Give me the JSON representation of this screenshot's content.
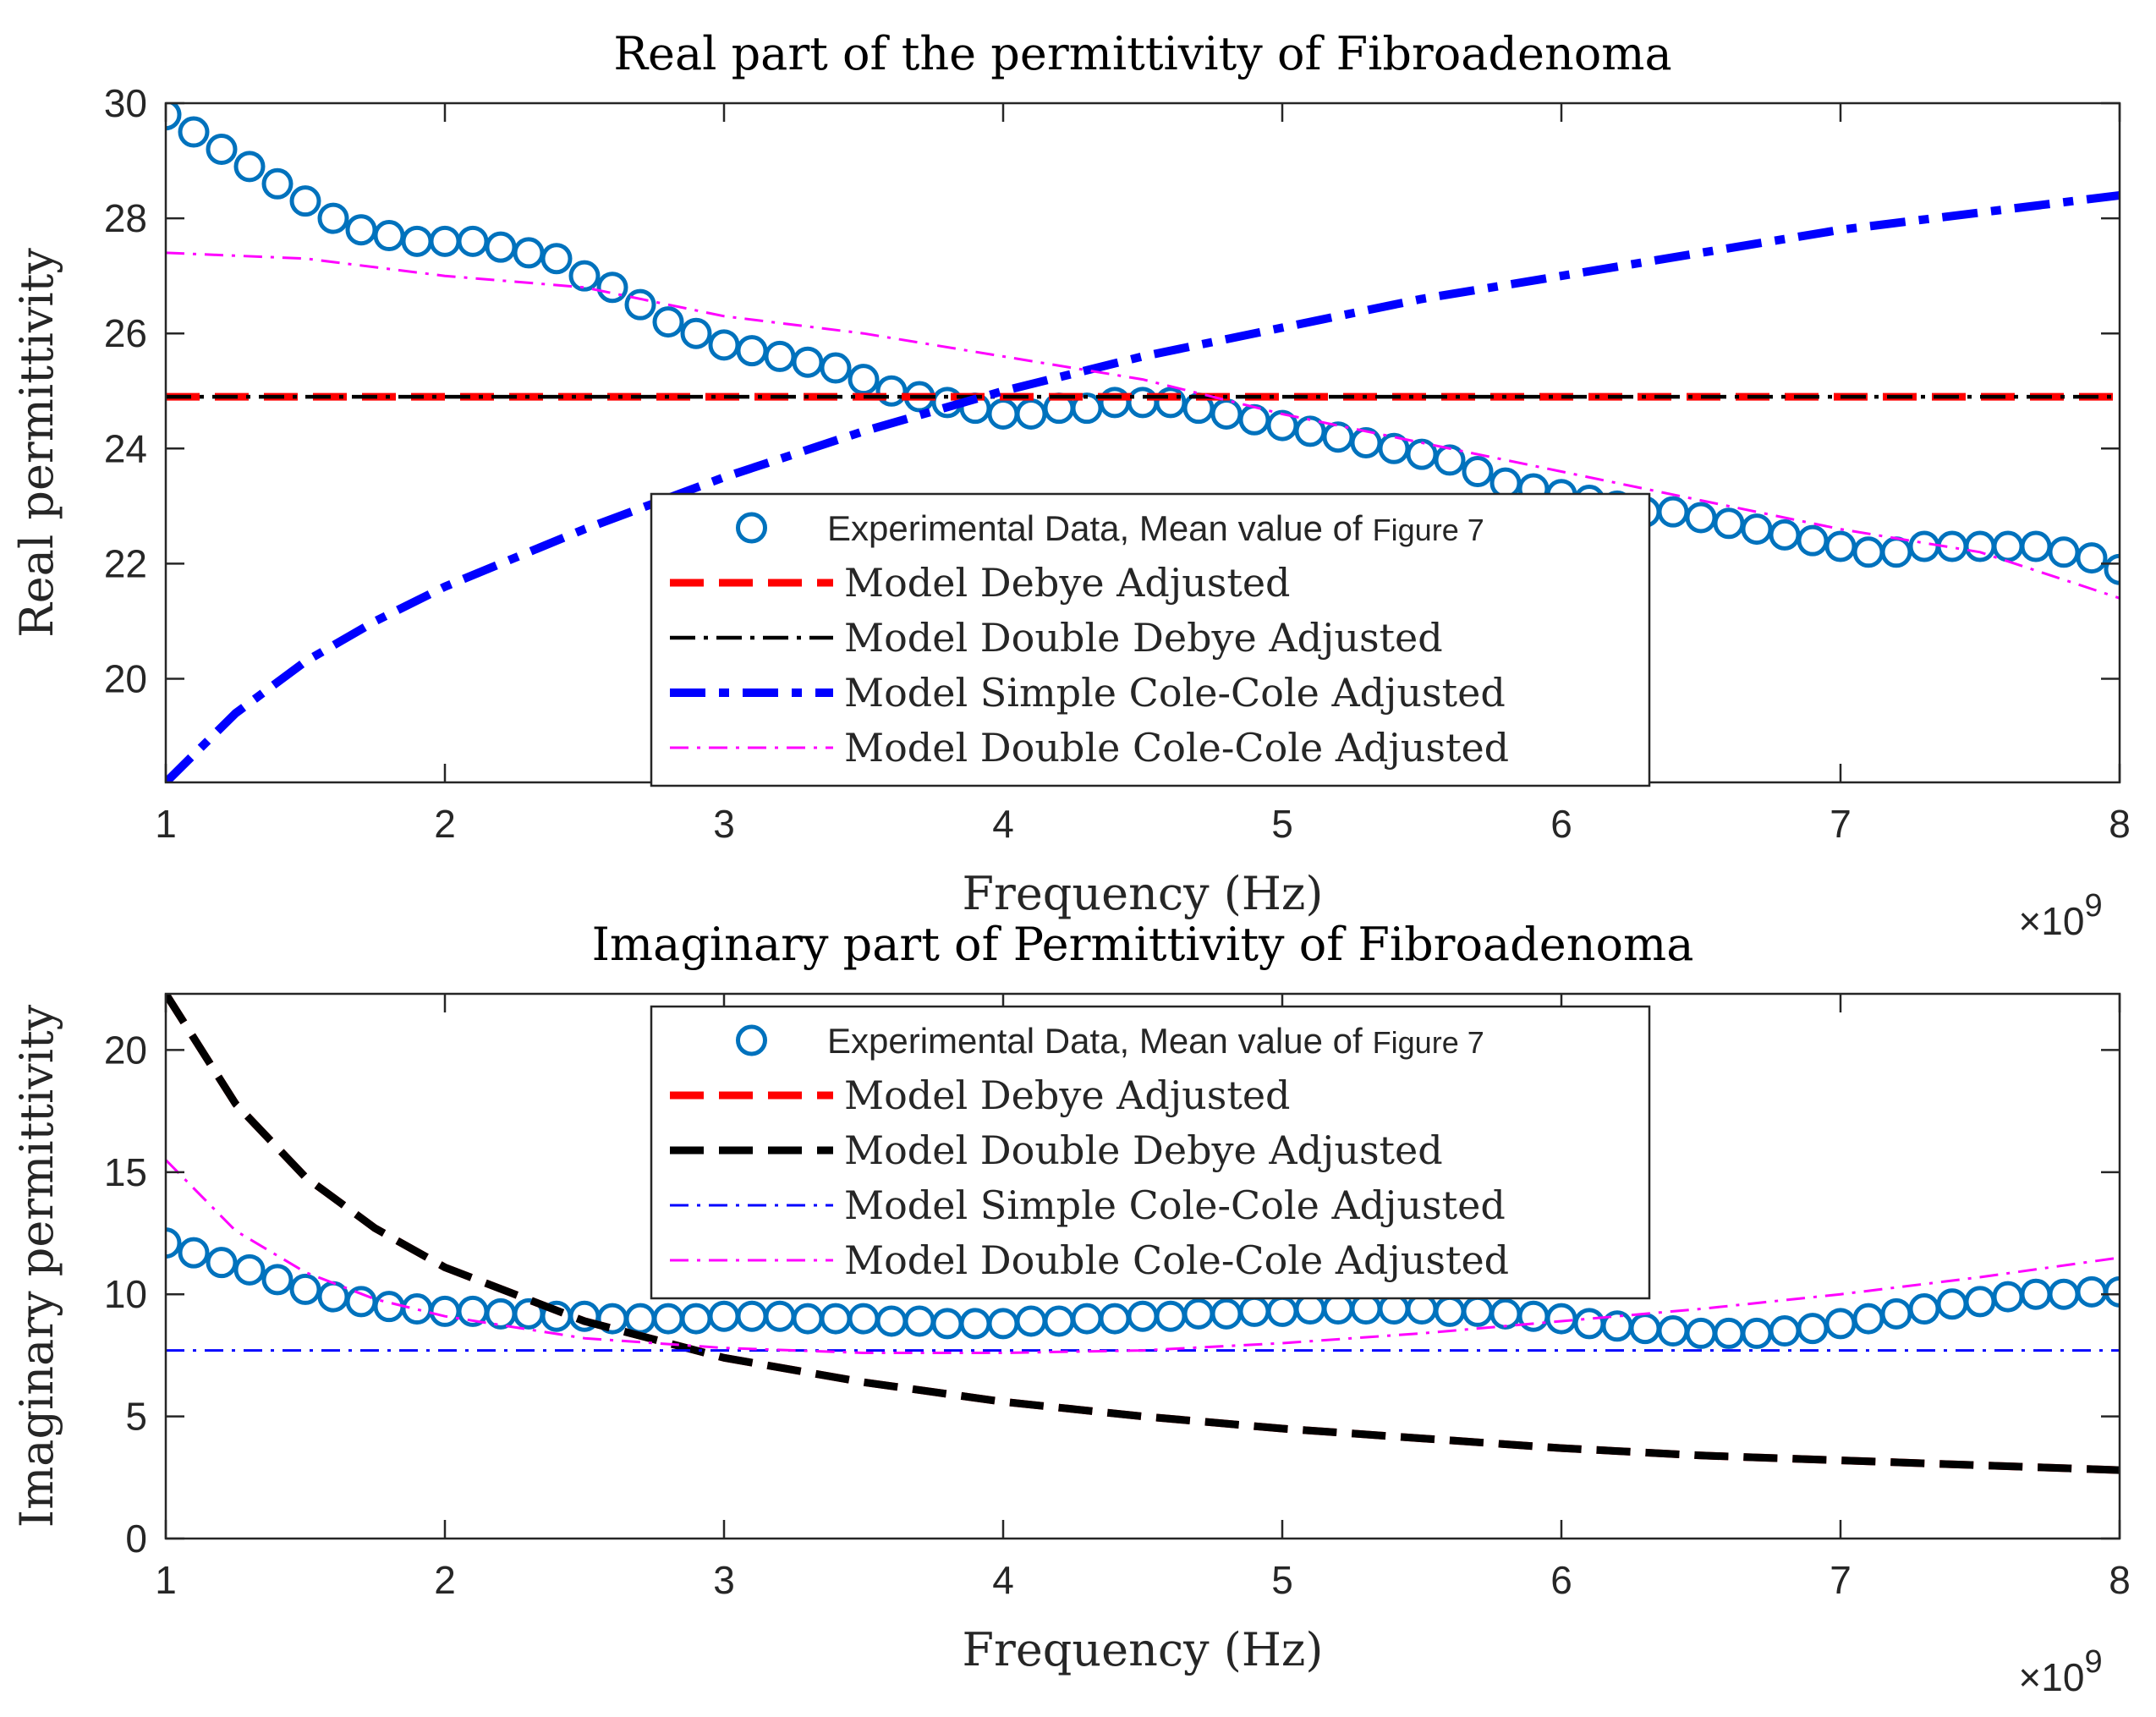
{
  "chart_data": [
    {
      "type": "line",
      "title": "Real part of the permittivity of Fibroadenoma",
      "xlabel": "Frequency (Hz)",
      "ylabel": "Real permittivity",
      "x_exponent": "×10",
      "x_exponent_power": "9",
      "xlim": [
        1,
        8
      ],
      "ylim": [
        18.2,
        30
      ],
      "xticks": [
        1,
        2,
        3,
        4,
        5,
        6,
        7,
        8
      ],
      "xtick_labels": [
        "1",
        "2",
        "3",
        "4",
        "5",
        "6",
        "7",
        "8"
      ],
      "yticks": [
        20,
        22,
        24,
        26,
        28,
        30
      ],
      "ytick_labels": [
        "20",
        "22",
        "24",
        "26",
        "28",
        "30"
      ],
      "legend_position": "bottom-center",
      "grid": false,
      "series": [
        {
          "name": "Experimental Data, Mean value of",
          "name_suffix": "Figure 7",
          "style": "markers",
          "color": "#0072BD",
          "x": [
            1.0,
            1.1,
            1.2,
            1.3,
            1.4,
            1.5,
            1.6,
            1.7,
            1.8,
            1.9,
            2.0,
            2.1,
            2.2,
            2.3,
            2.4,
            2.5,
            2.6,
            2.7,
            2.8,
            2.9,
            3.0,
            3.1,
            3.2,
            3.3,
            3.4,
            3.5,
            3.6,
            3.7,
            3.8,
            3.9,
            4.0,
            4.1,
            4.2,
            4.3,
            4.4,
            4.5,
            4.6,
            4.7,
            4.8,
            4.9,
            5.0,
            5.1,
            5.2,
            5.3,
            5.4,
            5.5,
            5.6,
            5.7,
            5.8,
            5.9,
            6.0,
            6.1,
            6.2,
            6.3,
            6.4,
            6.5,
            6.6,
            6.7,
            6.8,
            6.9,
            7.0,
            7.1,
            7.2,
            7.3,
            7.4,
            7.5,
            7.6,
            7.7,
            7.8,
            7.9,
            8.0
          ],
          "y": [
            29.8,
            29.5,
            29.2,
            28.9,
            28.6,
            28.3,
            28.0,
            27.8,
            27.7,
            27.6,
            27.6,
            27.6,
            27.5,
            27.4,
            27.3,
            27.0,
            26.8,
            26.5,
            26.2,
            26.0,
            25.8,
            25.7,
            25.6,
            25.5,
            25.4,
            25.2,
            25.0,
            24.9,
            24.8,
            24.7,
            24.6,
            24.6,
            24.7,
            24.7,
            24.8,
            24.8,
            24.8,
            24.7,
            24.6,
            24.5,
            24.4,
            24.3,
            24.2,
            24.1,
            24.0,
            23.9,
            23.8,
            23.6,
            23.4,
            23.3,
            23.2,
            23.1,
            23.0,
            22.9,
            22.9,
            22.8,
            22.7,
            22.6,
            22.5,
            22.4,
            22.3,
            22.2,
            22.2,
            22.3,
            22.3,
            22.3,
            22.3,
            22.3,
            22.2,
            22.1,
            21.9
          ]
        },
        {
          "name": "Model Debye Adjusted",
          "style": "dashed-thick",
          "color": "#FF0000",
          "x": [
            1,
            8
          ],
          "y": [
            24.9,
            24.9
          ]
        },
        {
          "name": "Model Double Debye Adjusted",
          "style": "dashdot",
          "color": "#000000",
          "x": [
            1,
            8
          ],
          "y": [
            24.9,
            24.9
          ]
        },
        {
          "name": "Model Simple Cole-Cole Adjusted",
          "style": "dashdot-thick",
          "color": "#0000FF",
          "x": [
            1.0,
            1.25,
            1.5,
            1.75,
            2.0,
            2.5,
            3.0,
            3.5,
            4.0,
            4.5,
            5.0,
            5.5,
            6.0,
            6.5,
            7.0,
            7.5,
            8.0
          ],
          "y": [
            18.2,
            19.4,
            20.3,
            21.0,
            21.6,
            22.6,
            23.5,
            24.3,
            25.0,
            25.6,
            26.1,
            26.6,
            27.0,
            27.4,
            27.8,
            28.1,
            28.4
          ]
        },
        {
          "name": "Model Double Cole-Cole Adjusted",
          "style": "dashdot-thin",
          "color": "#FF00FF",
          "x": [
            1.0,
            1.5,
            2.0,
            2.5,
            3.0,
            3.5,
            4.0,
            4.5,
            5.0,
            5.5,
            6.0,
            6.5,
            7.0,
            7.5,
            8.0
          ],
          "y": [
            27.4,
            27.3,
            27.0,
            26.8,
            26.3,
            26.0,
            25.6,
            25.2,
            24.6,
            24.1,
            23.6,
            23.1,
            22.6,
            22.2,
            21.4
          ]
        }
      ]
    },
    {
      "type": "line",
      "title": "Imaginary part of Permittivity of Fibroadenoma",
      "xlabel": "Frequency (Hz)",
      "ylabel": "Imaginary permittivity",
      "x_exponent": "×10",
      "x_exponent_power": "9",
      "xlim": [
        1,
        8
      ],
      "ylim": [
        0,
        22.3
      ],
      "xticks": [
        1,
        2,
        3,
        4,
        5,
        6,
        7,
        8
      ],
      "xtick_labels": [
        "1",
        "2",
        "3",
        "4",
        "5",
        "6",
        "7",
        "8"
      ],
      "yticks": [
        0,
        5,
        10,
        15,
        20
      ],
      "ytick_labels": [
        "0",
        "5",
        "10",
        "15",
        "20"
      ],
      "legend_position": "top-center",
      "grid": false,
      "series": [
        {
          "name": "Experimental Data, Mean value of",
          "name_suffix": "Figure 7",
          "style": "markers",
          "color": "#0072BD",
          "x": [
            1.0,
            1.1,
            1.2,
            1.3,
            1.4,
            1.5,
            1.6,
            1.7,
            1.8,
            1.9,
            2.0,
            2.1,
            2.2,
            2.3,
            2.4,
            2.5,
            2.6,
            2.7,
            2.8,
            2.9,
            3.0,
            3.1,
            3.2,
            3.3,
            3.4,
            3.5,
            3.6,
            3.7,
            3.8,
            3.9,
            4.0,
            4.1,
            4.2,
            4.3,
            4.4,
            4.5,
            4.6,
            4.7,
            4.8,
            4.9,
            5.0,
            5.1,
            5.2,
            5.3,
            5.4,
            5.5,
            5.6,
            5.7,
            5.8,
            5.9,
            6.0,
            6.1,
            6.2,
            6.3,
            6.4,
            6.5,
            6.6,
            6.7,
            6.8,
            6.9,
            7.0,
            7.1,
            7.2,
            7.3,
            7.4,
            7.5,
            7.6,
            7.7,
            7.8,
            7.9,
            8.0
          ],
          "y": [
            12.1,
            11.7,
            11.3,
            11.0,
            10.6,
            10.2,
            9.9,
            9.7,
            9.5,
            9.4,
            9.3,
            9.3,
            9.2,
            9.2,
            9.1,
            9.1,
            9.0,
            9.0,
            9.0,
            9.0,
            9.1,
            9.1,
            9.1,
            9.0,
            9.0,
            9.0,
            8.9,
            8.9,
            8.8,
            8.8,
            8.8,
            8.9,
            8.9,
            9.0,
            9.0,
            9.1,
            9.1,
            9.2,
            9.2,
            9.3,
            9.3,
            9.4,
            9.4,
            9.4,
            9.4,
            9.4,
            9.3,
            9.3,
            9.2,
            9.1,
            9.0,
            8.8,
            8.7,
            8.6,
            8.5,
            8.4,
            8.4,
            8.4,
            8.5,
            8.6,
            8.8,
            9.0,
            9.2,
            9.4,
            9.6,
            9.7,
            9.9,
            10.0,
            10.0,
            10.1,
            10.1
          ]
        },
        {
          "name": "Model Debye Adjusted",
          "style": "dashed-thick",
          "color": "#FF0000",
          "x": [
            1.0,
            1.25,
            1.5,
            1.75,
            2.0,
            2.5,
            3.0,
            3.5,
            4.0,
            4.5,
            5.0,
            5.5,
            6.0,
            6.5,
            7.0,
            7.5,
            8.0
          ],
          "y": [
            22.3,
            17.8,
            14.8,
            12.7,
            11.1,
            8.9,
            7.4,
            6.4,
            5.6,
            5.0,
            4.5,
            4.1,
            3.7,
            3.4,
            3.2,
            3.0,
            2.8
          ]
        },
        {
          "name": "Model Double Debye Adjusted",
          "style": "dashed-thick",
          "color": "#000000",
          "x": [
            1.0,
            1.25,
            1.5,
            1.75,
            2.0,
            2.5,
            3.0,
            3.5,
            4.0,
            4.5,
            5.0,
            5.5,
            6.0,
            6.5,
            7.0,
            7.5,
            8.0
          ],
          "y": [
            22.3,
            17.8,
            14.8,
            12.7,
            11.1,
            8.9,
            7.4,
            6.4,
            5.6,
            5.0,
            4.5,
            4.1,
            3.7,
            3.4,
            3.2,
            3.0,
            2.8
          ]
        },
        {
          "name": "Model Simple Cole-Cole Adjusted",
          "style": "dashdot-thin",
          "color": "#0000FF",
          "x": [
            1,
            8
          ],
          "y": [
            7.7,
            7.7
          ]
        },
        {
          "name": "Model Double Cole-Cole Adjusted",
          "style": "dashdot-thin",
          "color": "#FF00FF",
          "x": [
            1.0,
            1.25,
            1.5,
            1.75,
            2.0,
            2.5,
            3.0,
            3.5,
            4.0,
            4.5,
            5.0,
            5.5,
            6.0,
            6.5,
            7.0,
            7.5,
            8.0
          ],
          "y": [
            15.5,
            12.6,
            10.9,
            9.8,
            9.1,
            8.2,
            7.8,
            7.6,
            7.6,
            7.7,
            8.0,
            8.4,
            8.9,
            9.4,
            10.0,
            10.7,
            11.5
          ]
        }
      ]
    }
  ]
}
